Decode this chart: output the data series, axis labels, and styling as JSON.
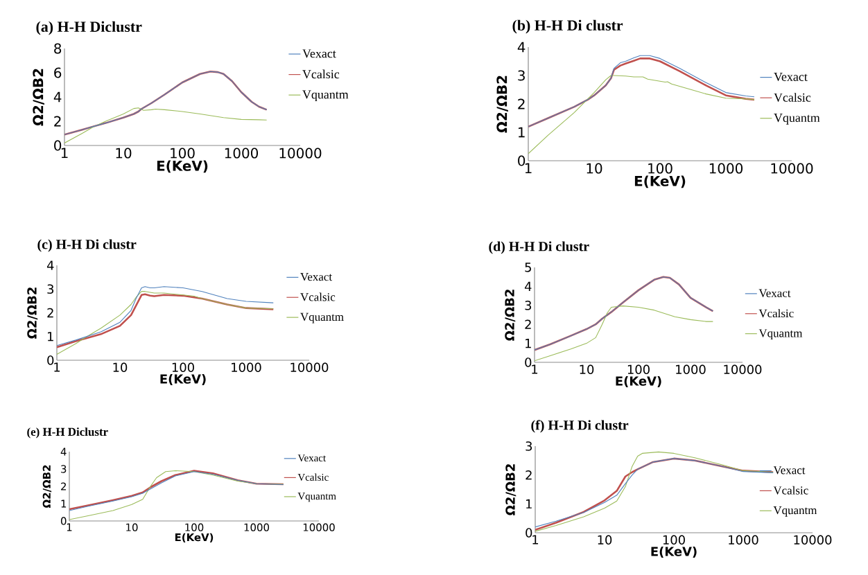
{
  "chart_data": [
    {
      "type": "line",
      "title": "(a) H-H Diclustr",
      "xlabel": "E(KeV)",
      "ylabel": "Ω2/ΩB2",
      "log": "x",
      "legend": "right",
      "xlim": [
        1,
        10000
      ],
      "ylim": [
        0,
        8
      ],
      "xticks": [
        1,
        10,
        100,
        1000,
        10000
      ],
      "yticks": [
        0,
        2,
        4,
        6,
        8
      ],
      "series": [
        {
          "name": "Vexact",
          "color": "#4f81bd",
          "x": [
            1,
            2,
            3,
            5,
            10,
            15,
            18,
            20,
            30,
            50,
            100,
            200,
            300,
            400,
            500,
            700,
            1000,
            1500,
            2000,
            2700
          ],
          "values": [
            0.9,
            1.3,
            1.55,
            1.85,
            2.3,
            2.6,
            2.8,
            3.0,
            3.5,
            4.2,
            5.2,
            5.9,
            6.1,
            6.05,
            5.9,
            5.3,
            4.4,
            3.6,
            3.2,
            2.95
          ]
        },
        {
          "name": "Vcalsic",
          "color": "#c0504d",
          "x": [
            1,
            2,
            3,
            5,
            10,
            15,
            18,
            20,
            30,
            50,
            100,
            200,
            300,
            400,
            500,
            700,
            1000,
            1500,
            2000,
            2700
          ],
          "values": [
            0.9,
            1.3,
            1.55,
            1.85,
            2.3,
            2.6,
            2.8,
            3.0,
            3.5,
            4.2,
            5.2,
            5.9,
            6.1,
            6.05,
            5.9,
            5.3,
            4.4,
            3.6,
            3.2,
            2.95
          ]
        },
        {
          "name": "Vquantm",
          "color": "#9bbb59",
          "x": [
            1,
            2,
            3,
            5,
            10,
            15,
            18,
            22,
            30,
            35,
            50,
            100,
            200,
            500,
            1000,
            2000,
            2700
          ],
          "values": [
            0.2,
            1.0,
            1.5,
            2.0,
            2.6,
            3.05,
            3.1,
            2.9,
            2.95,
            3.0,
            2.95,
            2.8,
            2.6,
            2.3,
            2.15,
            2.12,
            2.1
          ]
        }
      ]
    },
    {
      "type": "line",
      "title": "(b)  H-H Di clustr",
      "xlabel": "E(KeV)",
      "ylabel": "Ω2/ΩB2",
      "log": "x",
      "legend": "right",
      "xlim": [
        1,
        10000
      ],
      "ylim": [
        0,
        4
      ],
      "xticks": [
        1,
        10,
        100,
        1000,
        10000
      ],
      "yticks": [
        0,
        1,
        2,
        3,
        4
      ],
      "series": [
        {
          "name": "Vexact",
          "color": "#4f81bd",
          "x": [
            1,
            2,
            5,
            8,
            10,
            15,
            18,
            20,
            25,
            30,
            40,
            50,
            70,
            100,
            200,
            500,
            1000,
            2000,
            2700
          ],
          "values": [
            1.2,
            1.5,
            1.9,
            2.15,
            2.3,
            2.65,
            2.9,
            3.25,
            3.45,
            3.5,
            3.62,
            3.7,
            3.7,
            3.6,
            3.25,
            2.75,
            2.4,
            2.28,
            2.25
          ]
        },
        {
          "name": "Vcalsic",
          "color": "#c0504d",
          "x": [
            1,
            2,
            5,
            8,
            10,
            15,
            18,
            20,
            25,
            30,
            40,
            50,
            70,
            100,
            200,
            500,
            1000,
            2000,
            2700
          ],
          "values": [
            1.2,
            1.5,
            1.9,
            2.15,
            2.3,
            2.65,
            2.9,
            3.2,
            3.35,
            3.42,
            3.52,
            3.6,
            3.6,
            3.5,
            3.15,
            2.65,
            2.3,
            2.18,
            2.15
          ]
        },
        {
          "name": "Vquantm",
          "color": "#9bbb59",
          "x": [
            1,
            2,
            5,
            10,
            15,
            18,
            20,
            30,
            40,
            55,
            65,
            100,
            120,
            130,
            150,
            300,
            500,
            1000,
            2000,
            2700
          ],
          "values": [
            0.25,
            0.9,
            1.7,
            2.4,
            2.85,
            3.0,
            3.0,
            2.98,
            2.95,
            2.95,
            2.87,
            2.8,
            2.77,
            2.78,
            2.7,
            2.5,
            2.35,
            2.2,
            2.18,
            2.15
          ]
        }
      ]
    },
    {
      "type": "line",
      "title": "(c) H-H Di clustr",
      "xlabel": "E(KeV)",
      "ylabel": "Ω2/ΩB2",
      "log": "x",
      "legend": "right",
      "xlim": [
        1,
        10000
      ],
      "ylim": [
        0,
        4
      ],
      "xticks": [
        1,
        10,
        100,
        1000,
        10000
      ],
      "yticks": [
        0,
        1,
        2,
        3,
        4
      ],
      "series": [
        {
          "name": "Vexact",
          "color": "#4f81bd",
          "x": [
            1,
            2,
            5,
            10,
            15,
            18,
            22,
            25,
            30,
            35,
            50,
            100,
            200,
            500,
            1000,
            2700
          ],
          "values": [
            0.62,
            0.85,
            1.2,
            1.6,
            2.1,
            2.6,
            3.05,
            3.1,
            3.05,
            3.05,
            3.1,
            3.05,
            2.9,
            2.6,
            2.48,
            2.42
          ]
        },
        {
          "name": "Vcalsic",
          "color": "#c0504d",
          "x": [
            1,
            2,
            5,
            10,
            15,
            18,
            22,
            25,
            30,
            35,
            50,
            100,
            200,
            500,
            1000,
            2700
          ],
          "values": [
            0.55,
            0.8,
            1.1,
            1.45,
            1.9,
            2.3,
            2.75,
            2.78,
            2.72,
            2.7,
            2.75,
            2.72,
            2.6,
            2.35,
            2.2,
            2.15
          ]
        },
        {
          "name": "Vquantm",
          "color": "#9bbb59",
          "x": [
            1,
            2,
            3,
            5,
            10,
            15,
            18,
            22,
            25,
            35,
            50,
            100,
            150,
            200,
            500,
            1000,
            2700
          ],
          "values": [
            0.25,
            0.7,
            1.0,
            1.35,
            1.9,
            2.35,
            2.65,
            2.9,
            2.9,
            2.83,
            2.83,
            2.75,
            2.7,
            2.6,
            2.35,
            2.2,
            2.17
          ]
        }
      ]
    },
    {
      "type": "line",
      "title": "(d) H-H Di clustr",
      "xlabel": "E(KeV)",
      "ylabel": "Ω2/ΩB2",
      "log": "x",
      "legend": "right",
      "xlim": [
        1,
        10000
      ],
      "ylim": [
        0,
        5
      ],
      "xticks": [
        1,
        10,
        100,
        1000,
        10000
      ],
      "yticks": [
        0,
        1,
        2,
        3,
        4,
        5
      ],
      "series": [
        {
          "name": "Vexact",
          "color": "#4f81bd",
          "x": [
            1,
            2,
            5,
            10,
            15,
            20,
            30,
            50,
            100,
            200,
            300,
            400,
            600,
            1000,
            2000,
            2700
          ],
          "values": [
            0.65,
            0.95,
            1.4,
            1.75,
            2.0,
            2.3,
            2.65,
            3.15,
            3.8,
            4.35,
            4.5,
            4.45,
            4.1,
            3.4,
            2.9,
            2.7
          ]
        },
        {
          "name": "Vcalsic",
          "color": "#c0504d",
          "x": [
            1,
            2,
            5,
            10,
            15,
            20,
            30,
            50,
            100,
            200,
            300,
            400,
            600,
            1000,
            2000,
            2700
          ],
          "values": [
            0.65,
            0.95,
            1.4,
            1.75,
            2.0,
            2.3,
            2.65,
            3.15,
            3.8,
            4.35,
            4.5,
            4.45,
            4.1,
            3.4,
            2.9,
            2.7
          ]
        },
        {
          "name": "Vquantm",
          "color": "#9bbb59",
          "x": [
            1,
            2,
            5,
            10,
            15,
            20,
            25,
            30,
            50,
            100,
            200,
            500,
            1000,
            2000,
            2700
          ],
          "values": [
            0.08,
            0.35,
            0.7,
            1.0,
            1.3,
            2.0,
            2.6,
            2.9,
            2.97,
            2.9,
            2.75,
            2.4,
            2.25,
            2.15,
            2.15
          ]
        }
      ]
    },
    {
      "type": "line",
      "title": "(e) H-H Diclustr",
      "xlabel": "E(KeV)",
      "ylabel": "Ω2/ΩB2",
      "log": "x",
      "legend": "right",
      "xlim": [
        1,
        10000
      ],
      "ylim": [
        0,
        4
      ],
      "xticks": [
        1,
        10,
        100,
        1000,
        10000
      ],
      "yticks": [
        0,
        1,
        2,
        3,
        4
      ],
      "series": [
        {
          "name": "Vexact",
          "color": "#4f81bd",
          "x": [
            1,
            2,
            5,
            10,
            15,
            20,
            30,
            50,
            100,
            200,
            500,
            1000,
            2700
          ],
          "values": [
            0.6,
            0.85,
            1.15,
            1.4,
            1.6,
            1.85,
            2.2,
            2.6,
            2.85,
            2.7,
            2.35,
            2.15,
            2.1
          ]
        },
        {
          "name": "Vcalsic",
          "color": "#c0504d",
          "x": [
            1,
            2,
            5,
            10,
            15,
            20,
            30,
            50,
            100,
            200,
            500,
            1000,
            2700
          ],
          "values": [
            0.68,
            0.9,
            1.2,
            1.45,
            1.65,
            1.95,
            2.3,
            2.65,
            2.9,
            2.75,
            2.35,
            2.15,
            2.12
          ]
        },
        {
          "name": "Vquantm",
          "color": "#9bbb59",
          "x": [
            1,
            2,
            5,
            10,
            15,
            20,
            25,
            35,
            50,
            100,
            200,
            500,
            1000,
            2700
          ],
          "values": [
            0.08,
            0.3,
            0.6,
            0.95,
            1.25,
            2.0,
            2.5,
            2.85,
            2.9,
            2.85,
            2.65,
            2.3,
            2.15,
            2.12
          ]
        }
      ]
    },
    {
      "type": "line",
      "title": "(f) H-H Di clustr",
      "xlabel": "E(KeV)",
      "ylabel": "Ω2/ΩB2",
      "log": "x",
      "legend": "right",
      "xlim": [
        1,
        10000
      ],
      "ylim": [
        0,
        3
      ],
      "xticks": [
        1,
        10,
        100,
        1000,
        10000
      ],
      "yticks": [
        0,
        1,
        2,
        3
      ],
      "series": [
        {
          "name": "Vexact",
          "color": "#4f81bd",
          "x": [
            1,
            2,
            5,
            10,
            15,
            20,
            25,
            30,
            50,
            100,
            200,
            500,
            1000,
            2700
          ],
          "values": [
            0.2,
            0.4,
            0.7,
            1.05,
            1.3,
            1.7,
            2.0,
            2.2,
            2.45,
            2.57,
            2.5,
            2.3,
            2.12,
            2.08
          ]
        },
        {
          "name": "Vcalsic",
          "color": "#c0504d",
          "x": [
            1,
            2,
            5,
            10,
            15,
            20,
            25,
            30,
            50,
            100,
            200,
            500,
            1000,
            2700
          ],
          "values": [
            0.1,
            0.35,
            0.72,
            1.12,
            1.45,
            1.95,
            2.1,
            2.2,
            2.45,
            2.57,
            2.5,
            2.3,
            2.15,
            2.1
          ]
        },
        {
          "name": "Vquantm",
          "color": "#9bbb59",
          "x": [
            1,
            2,
            5,
            10,
            15,
            20,
            25,
            30,
            35,
            60,
            100,
            200,
            500,
            1000,
            2700
          ],
          "values": [
            0.05,
            0.25,
            0.55,
            0.85,
            1.1,
            1.6,
            2.3,
            2.65,
            2.75,
            2.8,
            2.75,
            2.6,
            2.35,
            2.15,
            2.1
          ]
        }
      ]
    }
  ]
}
